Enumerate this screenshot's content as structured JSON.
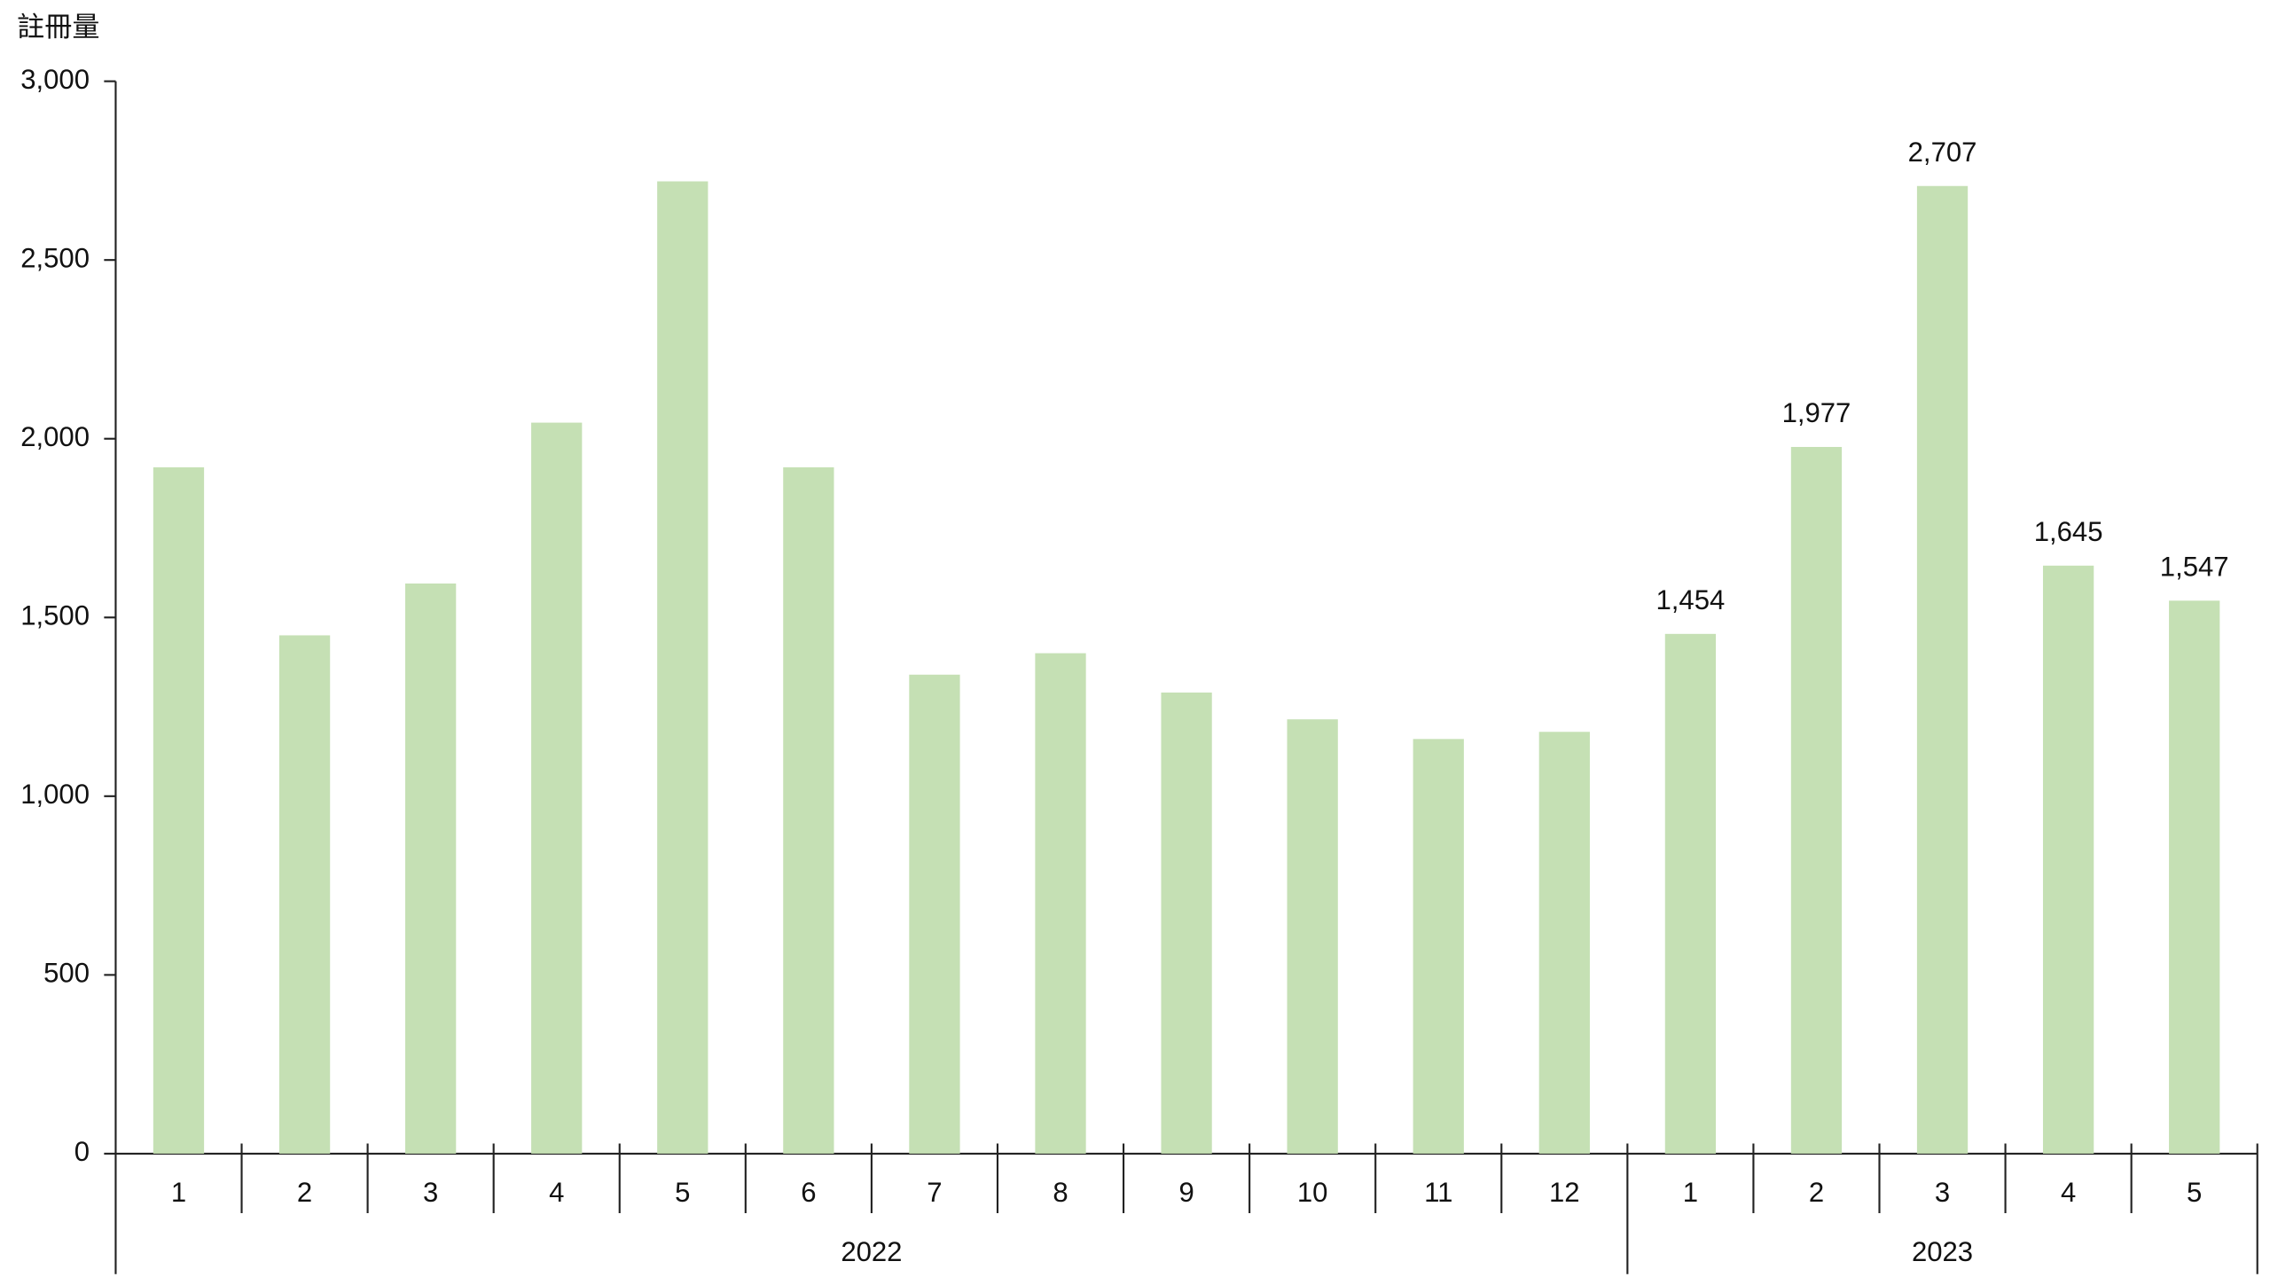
{
  "chart_data": {
    "type": "bar",
    "y_title": "註冊量",
    "color": "#c5e0b4",
    "ylim": [
      0,
      3000
    ],
    "yticks": [
      0,
      500,
      {
        "value": 1000,
        "label": "1,000"
      },
      {
        "value": 1500,
        "label": "1,500"
      },
      {
        "value": 2000,
        "label": "2,000"
      },
      {
        "value": 2500,
        "label": "2,500"
      },
      {
        "value": 3000,
        "label": "3,000"
      }
    ],
    "groups": [
      {
        "label": "2022",
        "categories": [
          "1",
          "2",
          "3",
          "4",
          "5",
          "6",
          "7",
          "8",
          "9",
          "10",
          "11",
          "12"
        ],
        "values": [
          1920,
          1450,
          1595,
          2045,
          2720,
          1920,
          1340,
          1400,
          1290,
          1215,
          1160,
          1180
        ],
        "value_labels": [
          null,
          null,
          null,
          null,
          null,
          null,
          null,
          null,
          null,
          null,
          null,
          null
        ]
      },
      {
        "label": "2023",
        "categories": [
          "1",
          "2",
          "3",
          "4",
          "5"
        ],
        "values": [
          1454,
          1977,
          2707,
          1645,
          1547
        ],
        "value_labels": [
          "1,454",
          "1,977",
          "2,707",
          "1,645",
          "1,547"
        ]
      }
    ]
  }
}
